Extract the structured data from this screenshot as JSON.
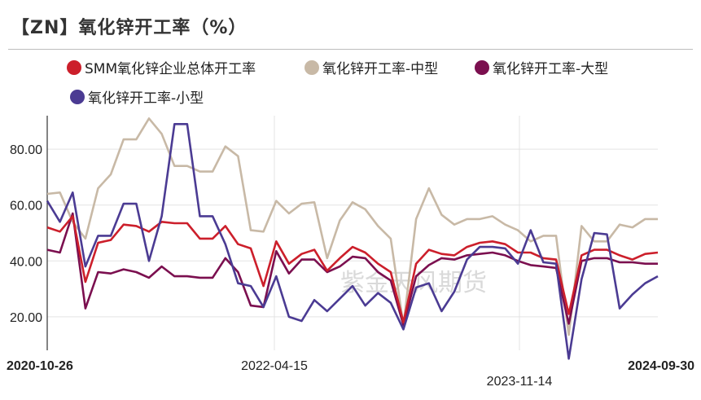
{
  "page": {
    "title": "【ZN】氧化锌开工率（%）",
    "watermark": "紫金天风期货"
  },
  "legend": [
    {
      "label": "SMM氧化锌企业总体开工率",
      "color": "#cc1f2b"
    },
    {
      "label": "氧化锌开工率-中型",
      "color": "#c8b9a6"
    },
    {
      "label": "氧化锌开工率-大型",
      "color": "#7b0f4f"
    },
    {
      "label": "氧化锌开工率-小型",
      "color": "#4b3b93"
    }
  ],
  "chart_data": {
    "type": "line",
    "title": "【ZN】氧化锌开工率（%）",
    "xlabel": "",
    "ylabel": "",
    "x_tick_labels": [
      "2020-10-26",
      "2022-04-15",
      "2023-11-14",
      "2024-09-30"
    ],
    "y_ticks": [
      "20.00",
      "40.00",
      "60.00",
      "80.00"
    ],
    "ylim": [
      8,
      92
    ],
    "grid": "vertical and horizontal",
    "x_range": [
      "2020-10-26",
      "2024-09-30"
    ],
    "series": [
      {
        "name": "SMM氧化锌企业总体开工率",
        "color": "#cc1f2b",
        "values": [
          52,
          50.5,
          56,
          32.5,
          46.5,
          47.5,
          53,
          52.5,
          50.5,
          54,
          53.5,
          53.5,
          48,
          48,
          52.5,
          46,
          44.5,
          31,
          47,
          39,
          42.5,
          44,
          36.5,
          41,
          45,
          43,
          39,
          36,
          18,
          39,
          44,
          42.5,
          42,
          45,
          46.5,
          47,
          46,
          43,
          43,
          41,
          40.5,
          21,
          42,
          44,
          44,
          42,
          40.5,
          42.5,
          43
        ]
      },
      {
        "name": "氧化锌开工率-中型",
        "color": "#c8b9a6",
        "values": [
          64,
          64.5,
          54,
          48,
          66,
          71,
          83.5,
          83.5,
          91,
          85.5,
          74,
          74,
          72,
          72,
          81,
          77.5,
          51,
          50.5,
          61.5,
          57,
          60.5,
          61,
          41,
          54.5,
          61,
          58.5,
          52.5,
          48,
          17,
          55,
          66,
          56.5,
          53,
          55,
          55,
          56,
          53,
          51,
          47,
          49,
          49,
          13.5,
          52.5,
          47,
          47,
          53,
          52,
          55,
          55
        ]
      },
      {
        "name": "氧化锌开工率-大型",
        "color": "#7b0f4f",
        "values": [
          44,
          43,
          57,
          23,
          36,
          35.5,
          37,
          36,
          34,
          38,
          34.5,
          34.5,
          34,
          34,
          41,
          36,
          24,
          23.5,
          43.5,
          35.5,
          40.5,
          40.5,
          36,
          38,
          41.5,
          41,
          36,
          33,
          17,
          34.5,
          38.5,
          41,
          40.5,
          42,
          42.5,
          43,
          42,
          40,
          38.5,
          38,
          37.5,
          17.5,
          40,
          41,
          41,
          39.5,
          39.5,
          39,
          39
        ]
      },
      {
        "name": "氧化锌开工率-小型",
        "color": "#4b3b93",
        "values": [
          61.5,
          54,
          64.5,
          38,
          49,
          49,
          60.5,
          60.5,
          40,
          56,
          89,
          89,
          56,
          56,
          46,
          32,
          31,
          23.5,
          34.5,
          20,
          18.5,
          26,
          22,
          26.5,
          31,
          24,
          28.5,
          25,
          15.5,
          30.5,
          32,
          22,
          29,
          40.5,
          45,
          45,
          44.5,
          39,
          51,
          39.5,
          39,
          5,
          33.5,
          50,
          49.5,
          23,
          28,
          32,
          34.5
        ]
      }
    ]
  }
}
